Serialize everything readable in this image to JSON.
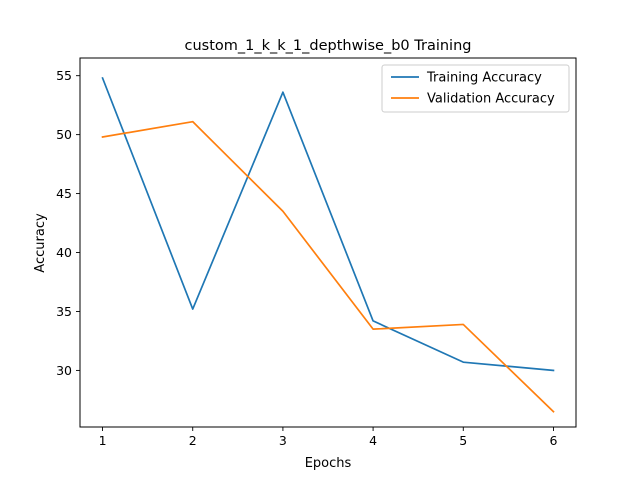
{
  "chart_data": {
    "type": "line",
    "title": "custom_1_k_k_1_depthwise_b0 Training",
    "xlabel": "Epochs",
    "ylabel": "Accuracy",
    "x": [
      1,
      2,
      3,
      4,
      5,
      6
    ],
    "xlim": [
      0.75,
      6.25
    ],
    "ylim": [
      25.2,
      56.5
    ],
    "xticks": [
      1,
      2,
      3,
      4,
      5,
      6
    ],
    "yticks": [
      30,
      35,
      40,
      45,
      50,
      55
    ],
    "grid": false,
    "legend_position": "upper right",
    "series": [
      {
        "name": "Training Accuracy",
        "color": "#1f77b4",
        "values": [
          54.8,
          35.2,
          53.6,
          34.2,
          30.7,
          30.0
        ]
      },
      {
        "name": "Validation Accuracy",
        "color": "#ff7f0e",
        "values": [
          49.8,
          51.1,
          43.5,
          33.5,
          33.9,
          26.5
        ]
      }
    ]
  }
}
